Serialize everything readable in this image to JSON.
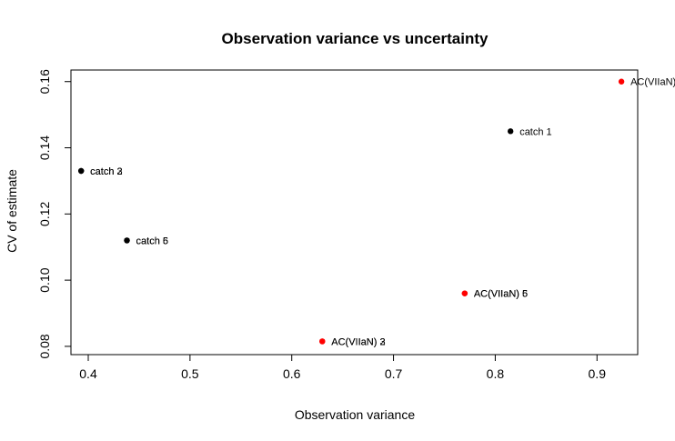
{
  "chart_data": {
    "type": "scatter",
    "title": "Observation variance vs uncertainty",
    "xlabel": "Observation variance",
    "ylabel": "CV of estimate",
    "x_ticks": [
      0.4,
      0.5,
      0.6,
      0.7,
      0.8,
      0.9
    ],
    "x_tick_labels": [
      "0.4",
      "0.5",
      "0.6",
      "0.7",
      "0.8",
      "0.9"
    ],
    "y_ticks": [
      0.08,
      0.1,
      0.12,
      0.14,
      0.16
    ],
    "y_tick_labels": [
      "0.08",
      "0.10",
      "0.12",
      "0.14",
      "0.16"
    ],
    "xlim": [
      0.383,
      0.94
    ],
    "ylim": [
      0.0775,
      0.1635
    ],
    "grid": false,
    "points": [
      {
        "x": 0.393,
        "y": 0.133,
        "color": "#000000",
        "label": "catch 2"
      },
      {
        "x": 0.393,
        "y": 0.133,
        "color": "#000000",
        "label": "catch 3"
      },
      {
        "x": 0.438,
        "y": 0.112,
        "color": "#000000",
        "label": "catch 5"
      },
      {
        "x": 0.438,
        "y": 0.112,
        "color": "#000000",
        "label": "catch 6"
      },
      {
        "x": 0.815,
        "y": 0.145,
        "color": "#000000",
        "label": "catch 1"
      },
      {
        "x": 0.924,
        "y": 0.16,
        "color": "#ff0000",
        "label": "AC(VIIaN)"
      },
      {
        "x": 0.77,
        "y": 0.096,
        "color": "#ff0000",
        "label": "AC(VIIaN) 5"
      },
      {
        "x": 0.77,
        "y": 0.096,
        "color": "#ff0000",
        "label": "AC(VIIaN) 6"
      },
      {
        "x": 0.63,
        "y": 0.0815,
        "color": "#ff0000",
        "label": "AC(VIIaN) 2"
      },
      {
        "x": 0.63,
        "y": 0.0815,
        "color": "#ff0000",
        "label": "AC(VIIaN) 3"
      }
    ]
  }
}
